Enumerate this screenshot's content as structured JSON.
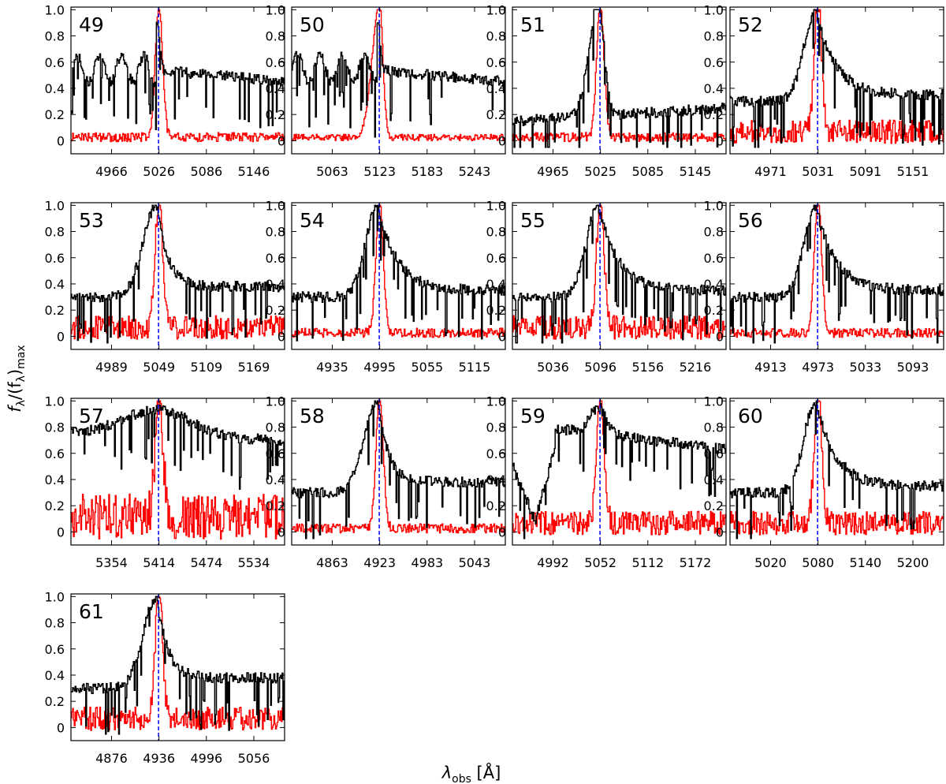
{
  "chart_data": {
    "type": "line",
    "ylabel": "fλ/(fλ)max",
    "ylabel_main": "f",
    "ylabel_sub": "λ",
    "ylabel_mid": "/(f",
    "ylabel_sub2": "λ",
    "ylabel_end": ")",
    "ylabel_sub3": "max",
    "xlabel_main": "λ",
    "xlabel_sub": "obs",
    "xlabel_unit": " [Å]",
    "ylim": [
      -0.1,
      1.02
    ],
    "yticks": [
      0,
      0.2,
      0.4,
      0.6,
      0.8,
      1.0
    ],
    "ytick_labels": [
      "0",
      "0.2",
      "0.4",
      "0.6",
      "0.8",
      "1.0"
    ],
    "series_colors": {
      "spectrum": "#000000",
      "residual": "#ff0000",
      "line_center": "#0000ff"
    },
    "panels": [
      {
        "id": "49",
        "center": 5026,
        "xticks": [
          "4966",
          "5026",
          "5086",
          "5146"
        ],
        "blackShape": "absorb_rich",
        "redShape": "narrow"
      },
      {
        "id": "50",
        "center": 5123,
        "xticks": [
          "5063",
          "5123",
          "5183",
          "5243"
        ],
        "blackShape": "absorb_rich",
        "redShape": "narrow_left"
      },
      {
        "id": "51",
        "center": 5025,
        "xticks": [
          "4965",
          "5025",
          "5085",
          "5145"
        ],
        "blackShape": "peak_low",
        "redShape": "narrow"
      },
      {
        "id": "52",
        "center": 5031,
        "xticks": [
          "4971",
          "5031",
          "5091",
          "5151"
        ],
        "blackShape": "peak_tail",
        "redShape": "noisy"
      },
      {
        "id": "53",
        "center": 5049,
        "xticks": [
          "4989",
          "5049",
          "5109",
          "5169"
        ],
        "blackShape": "peak_mid",
        "redShape": "noisy"
      },
      {
        "id": "54",
        "center": 4995,
        "xticks": [
          "4935",
          "4995",
          "5055",
          "5115"
        ],
        "blackShape": "peak_tail",
        "redShape": "narrow"
      },
      {
        "id": "55",
        "center": 5096,
        "xticks": [
          "5036",
          "5096",
          "5156",
          "5216"
        ],
        "blackShape": "peak_tail",
        "redShape": "noisy"
      },
      {
        "id": "56",
        "center": 4973,
        "xticks": [
          "4913",
          "4973",
          "5033",
          "5093"
        ],
        "blackShape": "peak_tail",
        "redShape": "narrow"
      },
      {
        "id": "57",
        "center": 5414,
        "xticks": [
          "5354",
          "5414",
          "5474",
          "5534"
        ],
        "blackShape": "high_flat",
        "redShape": "very_noisy"
      },
      {
        "id": "58",
        "center": 4923,
        "xticks": [
          "4863",
          "4923",
          "4983",
          "5043"
        ],
        "blackShape": "peak_mid",
        "redShape": "narrow"
      },
      {
        "id": "59",
        "center": 5052,
        "xticks": [
          "4992",
          "5052",
          "5112",
          "5172"
        ],
        "blackShape": "bowl",
        "redShape": "noisy"
      },
      {
        "id": "60",
        "center": 5080,
        "xticks": [
          "5020",
          "5080",
          "5140",
          "5200"
        ],
        "blackShape": "peak_tail",
        "redShape": "noisy"
      },
      {
        "id": "61",
        "center": 4936,
        "xticks": [
          "4876",
          "4936",
          "4996",
          "5056"
        ],
        "blackShape": "peak_mid",
        "redShape": "noisy"
      }
    ]
  }
}
